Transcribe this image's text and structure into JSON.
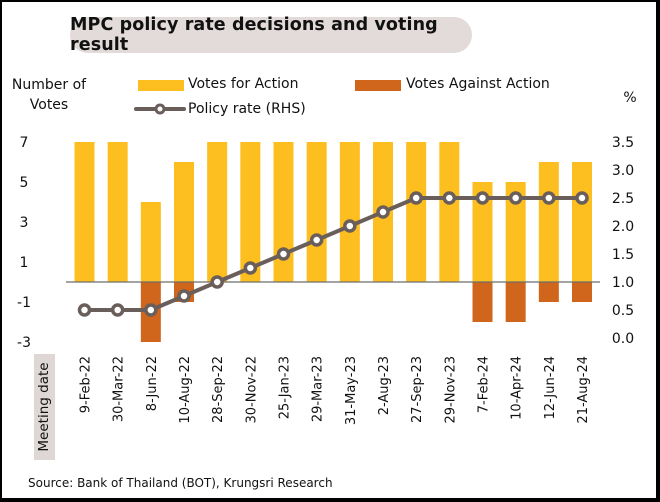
{
  "title": "MPC policy rate decisions and voting result",
  "source": "Source: Bank of Thailand (BOT), Krungsri Research",
  "left_axis_title": [
    "Number of",
    "Votes"
  ],
  "right_axis_title": "%",
  "x_axis_title": "Meeting date",
  "legend": {
    "votes_for": "Votes for Action",
    "votes_against": "Votes Against Action",
    "policy_rate": "Policy rate (RHS)"
  },
  "colors": {
    "votes_for": "#FDBE1F",
    "votes_against": "#D0651C",
    "policy_rate": "#6A5E5B",
    "title_bg": "#E2DBD9"
  },
  "chart_data": {
    "type": "bar",
    "title": "MPC policy rate decisions and voting result",
    "xlabel": "Meeting date",
    "ylabel": "Number of Votes",
    "y2label": "%",
    "categories": [
      "9-Feb-22",
      "30-Mar-22",
      "8-Jun-22",
      "10-Aug-22",
      "28-Sep-22",
      "30-Nov-22",
      "25-Jan-23",
      "29-Mar-23",
      "31-May-23",
      "2-Aug-23",
      "27-Sep-23",
      "29-Nov-23",
      "7-Feb-24",
      "10-Apr-24",
      "12-Jun-24",
      "21-Aug-24"
    ],
    "series": [
      {
        "name": "Votes for Action",
        "type": "bar",
        "axis": "left",
        "values": [
          7,
          7,
          4,
          6,
          7,
          7,
          7,
          7,
          7,
          7,
          7,
          7,
          5,
          5,
          6,
          6
        ]
      },
      {
        "name": "Votes Against Action",
        "type": "bar",
        "axis": "left",
        "values": [
          0,
          0,
          -3,
          -1,
          0,
          0,
          0,
          0,
          0,
          0,
          0,
          0,
          -2,
          -2,
          -1,
          -1
        ]
      },
      {
        "name": "Policy rate (RHS)",
        "type": "line",
        "axis": "right",
        "values": [
          0.5,
          0.5,
          0.5,
          0.75,
          1.0,
          1.25,
          1.5,
          1.75,
          2.0,
          2.25,
          2.5,
          2.5,
          2.5,
          2.5,
          2.5,
          2.5
        ]
      }
    ],
    "ylim": [
      -3,
      7
    ],
    "yticks": [
      "7",
      "5",
      "3",
      "1",
      "-1",
      "-3"
    ],
    "ytick_values": [
      7,
      5,
      3,
      1,
      -1,
      -3
    ],
    "y2lim": [
      0,
      3.5
    ],
    "y2ticks": [
      "3.5",
      "3.0",
      "2.5",
      "2.0",
      "1.5",
      "1.0",
      "0.5",
      "0.0"
    ],
    "y2tick_values": [
      3.5,
      3.0,
      2.5,
      2.0,
      1.5,
      1.0,
      0.5,
      0.0
    ],
    "grid": false,
    "legend_position": "top"
  }
}
